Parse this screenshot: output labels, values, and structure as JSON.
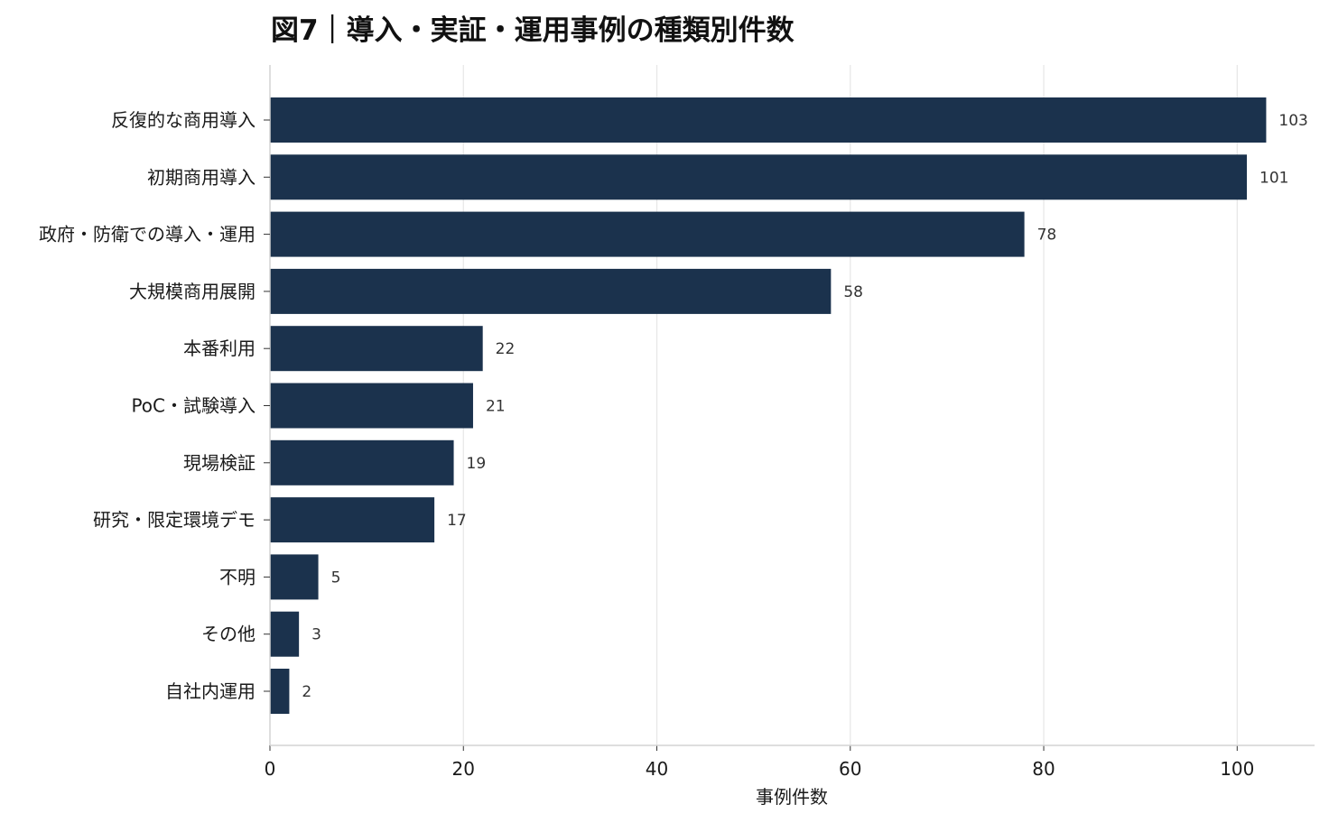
{
  "chart_data": {
    "type": "bar",
    "orientation": "horizontal",
    "title": "図7｜導入・実証・運用事例の種類別件数",
    "xlabel": "事例件数",
    "ylabel": "",
    "categories": [
      "反復的な商用導入",
      "初期商用導入",
      "政府・防衛での導入・運用",
      "大規模商用展開",
      "本番利用",
      "PoC・試験導入",
      "現場検証",
      "研究・限定環境デモ",
      "不明",
      "その他",
      "自社内運用"
    ],
    "values": [
      103,
      101,
      78,
      58,
      22,
      21,
      19,
      17,
      5,
      3,
      2
    ],
    "value_labels": [
      "103",
      "101",
      "78",
      "58",
      "22",
      "21",
      "19",
      "17",
      "5",
      "3",
      "2"
    ],
    "xlim": [
      0,
      108
    ],
    "xticks": [
      0,
      20,
      40,
      60,
      80,
      100
    ],
    "xtick_labels": [
      "0",
      "20",
      "40",
      "60",
      "80",
      "100"
    ],
    "grid": "vertical",
    "bar_color": "#1b324d",
    "grid_color": "#e6e6e6",
    "legend": "none"
  }
}
